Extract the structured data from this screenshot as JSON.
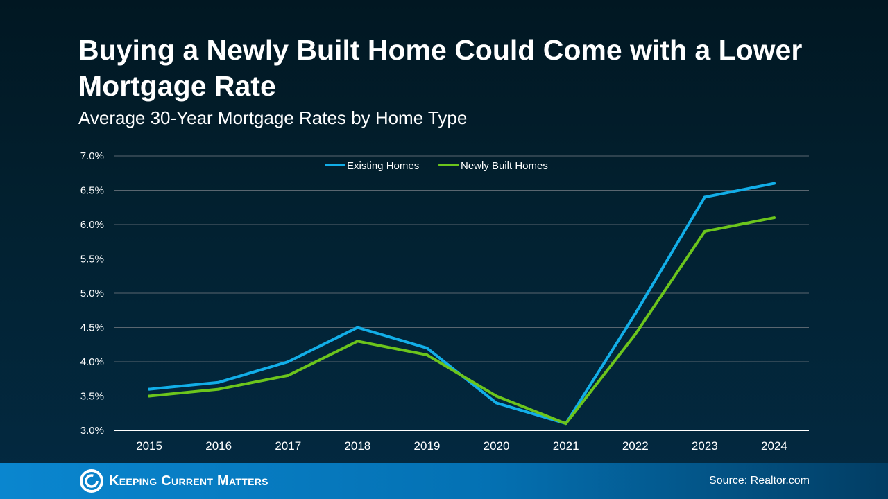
{
  "header": {
    "title": "Buying a Newly Built Home Could Come with a Lower Mortgage Rate",
    "subtitle": "Average 30-Year Mortgage Rates by Home Type"
  },
  "footer": {
    "logo_text": "Keeping Current Matters",
    "source": "Source: Realtor.com"
  },
  "chart_data": {
    "type": "line",
    "categories": [
      "2015",
      "2016",
      "2017",
      "2018",
      "2019",
      "2020",
      "2021",
      "2022",
      "2023",
      "2024"
    ],
    "ylim": [
      3.0,
      7.0
    ],
    "yticks": [
      "3.0%",
      "3.5%",
      "4.0%",
      "4.5%",
      "5.0%",
      "5.5%",
      "6.0%",
      "6.5%",
      "7.0%"
    ],
    "grid": true,
    "legend": "top-center",
    "series": [
      {
        "name": "Existing Homes",
        "color": "#12aee8",
        "values": [
          3.6,
          3.7,
          4.0,
          4.5,
          4.2,
          3.4,
          3.1,
          4.7,
          6.4,
          6.6
        ]
      },
      {
        "name": "Newly Built Homes",
        "color": "#6cc51c",
        "values": [
          3.5,
          3.6,
          3.8,
          4.3,
          4.1,
          3.5,
          3.1,
          4.4,
          5.9,
          6.1
        ]
      }
    ]
  }
}
